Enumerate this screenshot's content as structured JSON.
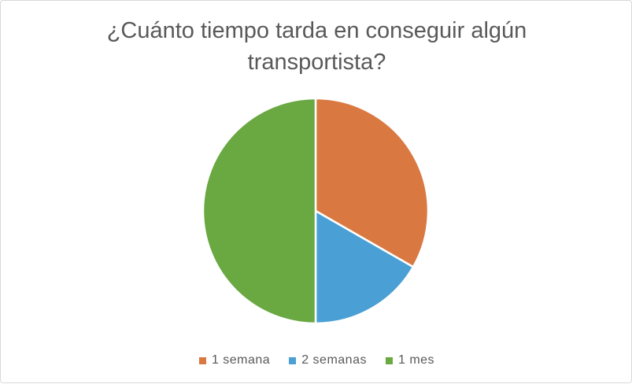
{
  "chart_data": {
    "type": "pie",
    "title": "¿Cuánto tiempo tarda en conseguir algún transportista?",
    "title_lines": [
      "¿Cuánto tiempo tarda en conseguir algún",
      "transportista?"
    ],
    "slices": [
      {
        "label": "1 semana",
        "value": 33.3,
        "color": "#d97941"
      },
      {
        "label": "2 semanas",
        "value": 16.7,
        "color": "#4a9fd4"
      },
      {
        "label": "1 mes",
        "value": 50.0,
        "color": "#6aa842"
      }
    ],
    "start_angle": "12 o'clock, clockwise",
    "legend_position": "bottom"
  }
}
